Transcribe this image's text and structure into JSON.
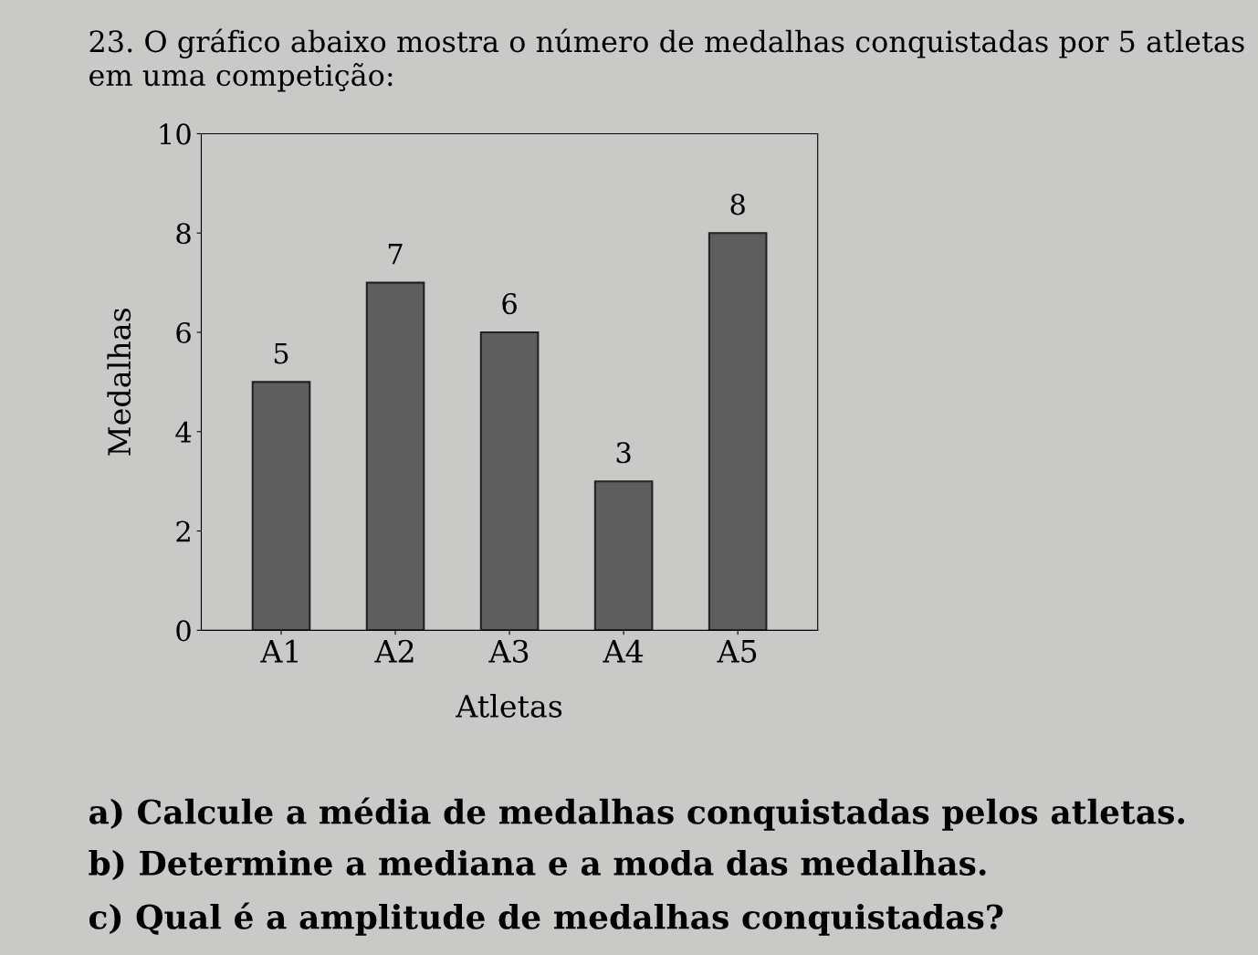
{
  "chart_data": {
    "type": "bar",
    "title": "23. O gráfico abaixo mostra o número de medalhas conquistadas por 5 atletas em uma competição:",
    "categories": [
      "A1",
      "A2",
      "A3",
      "A4",
      "A5"
    ],
    "values": [
      5,
      7,
      6,
      3,
      8
    ],
    "color": "#5e5e5e",
    "xlabel": "Atletas",
    "ylabel": "Medalhas",
    "ylim": [
      0,
      10
    ],
    "yticks": [
      0,
      2,
      4,
      6,
      8,
      10
    ],
    "data_labels": true,
    "grid": false,
    "legend": false,
    "annotations": [
      "a) Calcule a média de medalhas conquistadas pelos atletas.",
      "b) Determine a mediana e a moda das medalhas.",
      "c) Qual é a amplitude de medalhas conquistadas?"
    ]
  }
}
